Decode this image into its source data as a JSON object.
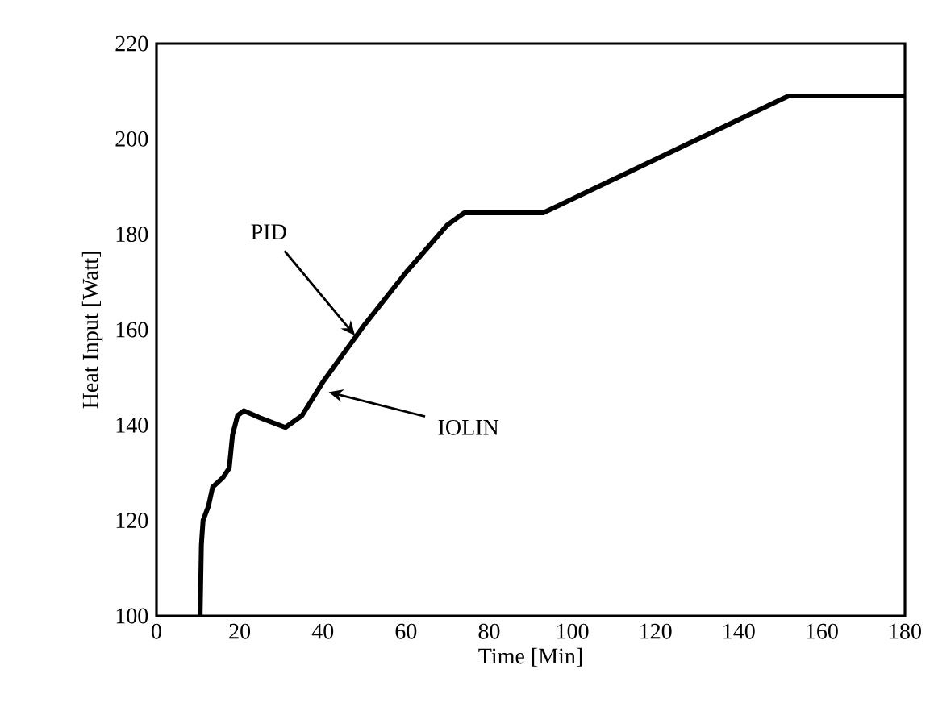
{
  "chart_data": {
    "type": "line",
    "xlabel": "Time [Min]",
    "ylabel": "Heat Input [Watt]",
    "xlim": [
      0,
      180
    ],
    "ylim": [
      100,
      220
    ],
    "xticks": [
      0,
      20,
      40,
      60,
      80,
      100,
      120,
      140,
      160,
      180
    ],
    "yticks": [
      100,
      120,
      140,
      160,
      180,
      200,
      220
    ],
    "grid": false,
    "marker": "none",
    "line_style": "solid",
    "series": [
      {
        "color": "#000000",
        "x": [
          10.5,
          10.8,
          11.2,
          12.5,
          13.5,
          16,
          17.5,
          18.3,
          19.5,
          21,
          25,
          31,
          35,
          40,
          50,
          60,
          70,
          74,
          93,
          152,
          180
        ],
        "values": [
          100,
          115,
          120,
          123,
          127,
          129,
          131,
          138,
          142,
          143,
          141.5,
          139.5,
          142,
          149,
          161,
          172,
          182,
          184.5,
          184.5,
          209,
          209
        ]
      }
    ],
    "annotations": [
      {
        "text": "PID",
        "x": 48,
        "y": 158.5
      },
      {
        "text": "IOLIN",
        "x": 41,
        "y": 147
      }
    ]
  }
}
